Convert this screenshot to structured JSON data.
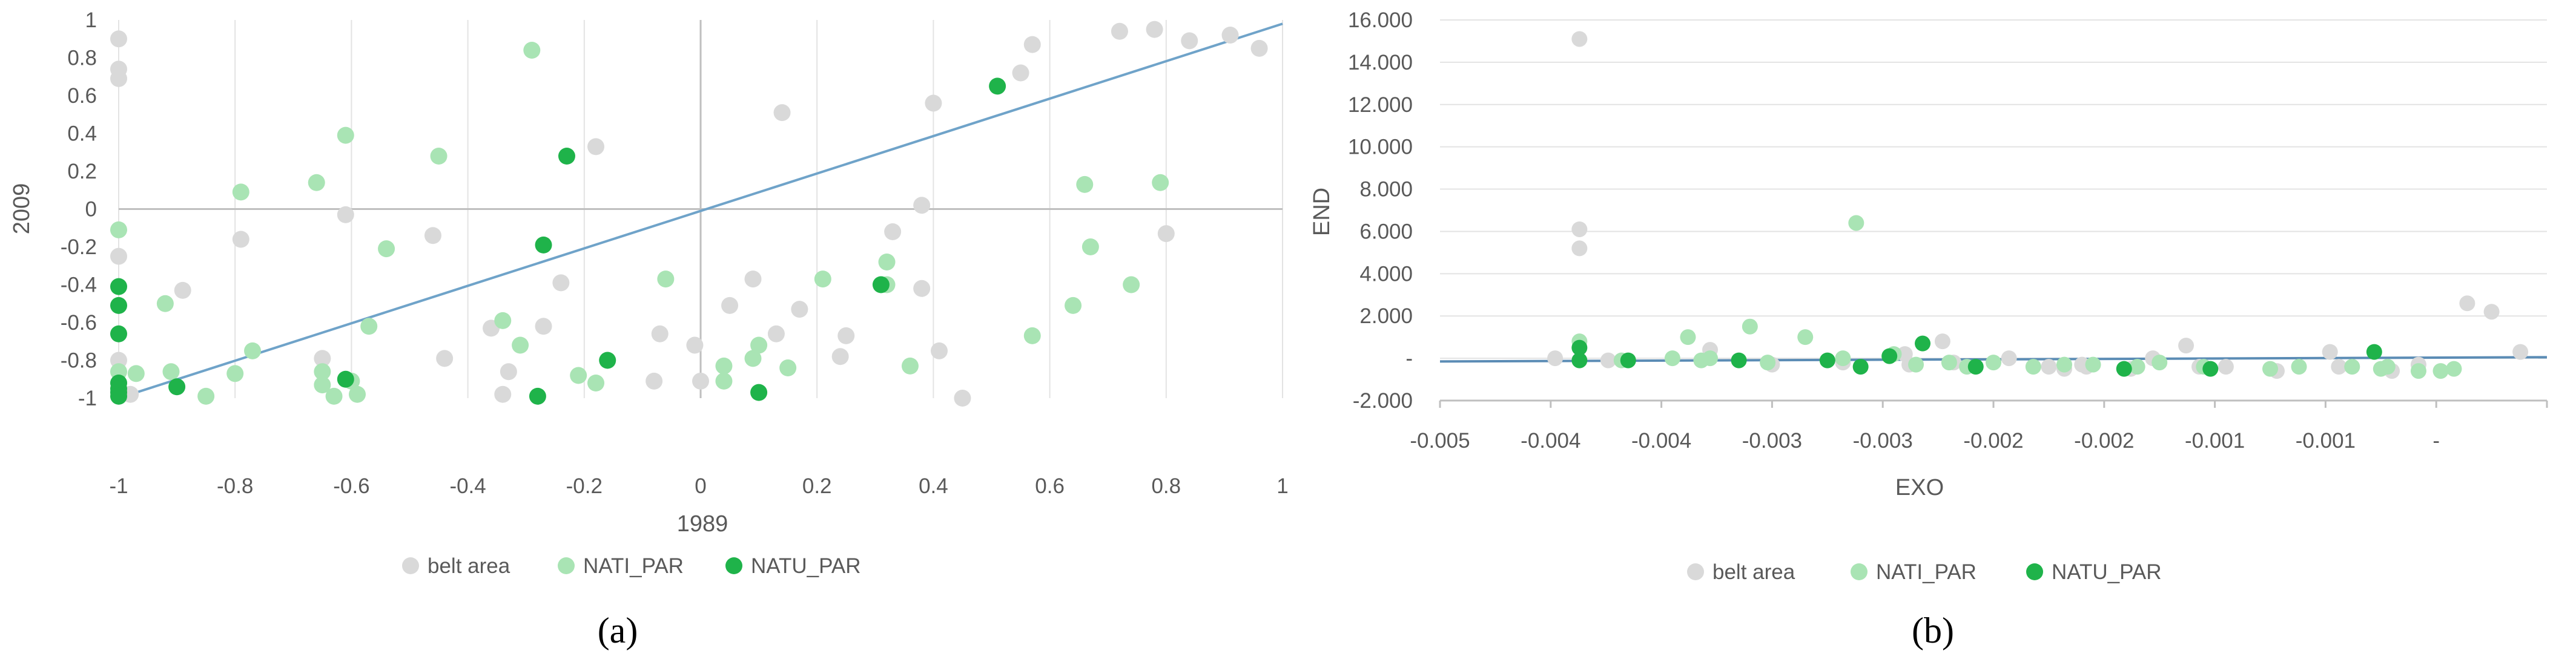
{
  "chart_data": [
    {
      "type": "scatter",
      "panel_label": "(a)",
      "xlabel": "1989",
      "ylabel": "2009",
      "xlim": [
        -1,
        1
      ],
      "ylim": [
        -1,
        1
      ],
      "x_ticks": [
        -1,
        -0.8,
        -0.6,
        -0.4,
        -0.2,
        0,
        0.2,
        0.4,
        0.6,
        0.8,
        1
      ],
      "x_tick_labels": [
        "-1",
        "-0.8",
        "-0.6",
        "-0.4",
        "-0.2",
        "0",
        "0.2",
        "0.4",
        "0.6",
        "0.8",
        "1"
      ],
      "y_ticks": [
        1,
        0.8,
        0.6,
        0.4,
        0.2,
        0,
        -0.2,
        -0.4,
        -0.6,
        -0.8,
        -1
      ],
      "y_tick_labels": [
        "1",
        "0.8",
        "0.6",
        "0.4",
        "0.2",
        "0",
        "-0.2",
        "-0.4",
        "-0.6",
        "-0.8",
        "-1"
      ],
      "trendline": {
        "x": [
          -1,
          1
        ],
        "y": [
          -1,
          0.98
        ],
        "color": "#6fa3c9"
      },
      "legend_position": "bottom",
      "series": [
        {
          "name": "belt area",
          "color": "#d9d9d9",
          "x": [
            -1,
            -1,
            -1,
            -1,
            -0.89,
            -0.79,
            -0.65,
            -0.61,
            -0.46,
            -0.44,
            -0.36,
            -0.34,
            -0.33,
            -0.27,
            -0.24,
            -0.18,
            -0.07,
            -0.08,
            -0.01,
            0,
            0.05,
            0.09,
            0.13,
            0.14,
            0.17,
            0.24,
            0.25,
            0.33,
            0.38,
            0.38,
            0.4,
            0.41,
            0.45,
            0.55,
            0.57,
            0.72,
            0.78,
            0.84,
            0.91,
            0.96,
            0.8,
            -0.98,
            -1
          ],
          "y": [
            0.9,
            0.74,
            0.69,
            -0.25,
            -0.43,
            -0.16,
            -0.79,
            -0.03,
            -0.14,
            -0.79,
            -0.63,
            -0.98,
            -0.86,
            -0.62,
            -0.39,
            0.33,
            -0.66,
            -0.91,
            -0.72,
            -0.91,
            -0.51,
            -0.37,
            -0.66,
            0.51,
            -0.53,
            -0.78,
            -0.67,
            -0.12,
            0.02,
            -0.42,
            0.56,
            -0.75,
            -1,
            0.72,
            0.87,
            0.94,
            0.95,
            0.89,
            0.92,
            0.85,
            -0.13,
            -0.98,
            -0.8
          ]
        },
        {
          "name": "NATI_PAR",
          "color": "#a9e4b4",
          "x": [
            -1,
            -1,
            -0.97,
            -0.92,
            -0.91,
            -0.85,
            -0.8,
            -0.79,
            -0.77,
            -0.66,
            -0.65,
            -0.65,
            -0.63,
            -0.61,
            -0.6,
            -0.59,
            -0.57,
            -0.54,
            -0.45,
            -0.34,
            -0.31,
            -0.29,
            -0.21,
            -0.18,
            -0.06,
            0.04,
            0.04,
            0.09,
            0.1,
            0.15,
            0.21,
            0.32,
            0.32,
            0.36,
            0.57,
            0.64,
            0.66,
            0.67,
            0.74,
            0.79
          ],
          "y": [
            -0.11,
            -0.86,
            -0.87,
            -0.5,
            -0.86,
            -0.99,
            -0.87,
            0.09,
            -0.75,
            0.14,
            -0.86,
            -0.93,
            -0.99,
            0.39,
            -0.91,
            -0.98,
            -0.62,
            -0.21,
            0.28,
            -0.59,
            -0.72,
            0.84,
            -0.88,
            -0.92,
            -0.37,
            -0.83,
            -0.91,
            -0.79,
            -0.72,
            -0.84,
            -0.37,
            -0.28,
            -0.4,
            -0.83,
            -0.67,
            -0.51,
            0.13,
            -0.2,
            -0.4,
            0.14
          ]
        },
        {
          "name": "NATU_PAR",
          "color": "#1fb34a",
          "x": [
            -1,
            -1,
            -1,
            -1,
            -1,
            -1,
            -1,
            -0.9,
            -0.61,
            -0.23,
            -0.27,
            -0.28,
            -0.16,
            0.1,
            0.31,
            0.51
          ],
          "y": [
            -0.41,
            -0.51,
            -0.66,
            -0.92,
            -0.95,
            -0.97,
            -0.99,
            -0.94,
            -0.9,
            0.28,
            -0.19,
            -0.99,
            -0.8,
            -0.97,
            -0.4,
            0.65
          ]
        }
      ]
    },
    {
      "type": "scatter",
      "panel_label": "(b)",
      "xlabel": "EXO",
      "ylabel": "END",
      "xlim": [
        -0.005,
        0
      ],
      "ylim": [
        -2000,
        16000
      ],
      "x_ticks": [
        -0.005,
        -0.0045,
        -0.004,
        -0.0035,
        -0.003,
        -0.0025,
        -0.002,
        -0.0015,
        -0.001,
        -0.0005,
        0
      ],
      "x_tick_labels": [
        "-0.005",
        "-0.004",
        "-0.004",
        "-0.003",
        "-0.003",
        "-0.002",
        "-0.002",
        "-0.001",
        "-0.001",
        "-",
        ""
      ],
      "y_ticks": [
        16000,
        14000,
        12000,
        10000,
        8000,
        6000,
        4000,
        2000,
        0,
        -2000
      ],
      "y_tick_labels": [
        "16.000",
        "14.000",
        "12.000",
        "10.000",
        "8.000",
        "6.000",
        "4.000",
        "2.000",
        "-",
        "-2.000"
      ],
      "trendline": {
        "x": [
          -0.005,
          0
        ],
        "y": [
          -150,
          50
        ],
        "color": "#5b8cb5"
      },
      "legend_position": "bottom",
      "series": [
        {
          "name": "belt area",
          "color": "#d9d9d9",
          "x": [
            -0.00437,
            -0.00437,
            -0.00437,
            -0.00424,
            -0.00378,
            -0.0035,
            -0.0029,
            -0.00288,
            -0.00273,
            -0.00268,
            -0.00243,
            -0.00225,
            -0.00218,
            -0.0021,
            -0.00188,
            -0.00178,
            -0.00163,
            -0.00157,
            -0.00145,
            -0.00122,
            -0.00098,
            -0.00094,
            -0.0007,
            -0.00058,
            -0.00036,
            -0.00025,
            -0.00012,
            -0.00448,
            -0.00318,
            -0.00208
          ],
          "y": [
            15100,
            6100,
            5200,
            -100,
            400,
            -300,
            200,
            -300,
            800,
            -200,
            0,
            -400,
            -500,
            -300,
            -500,
            0,
            600,
            -400,
            -400,
            -600,
            300,
            -400,
            -600,
            -300,
            2600,
            2200,
            300,
            0,
            -200,
            -400
          ]
        },
        {
          "name": "NATI_PAR",
          "color": "#a9e4b4",
          "x": [
            -0.00437,
            -0.00418,
            -0.00395,
            -0.00388,
            -0.00378,
            -0.0036,
            -0.00352,
            -0.00335,
            -0.00318,
            -0.00312,
            -0.00285,
            -0.0027,
            -0.0025,
            -0.00232,
            -0.00218,
            -0.00205,
            -0.00185,
            -0.00175,
            -0.00155,
            -0.00125,
            -0.00112,
            -0.00088,
            -0.00075,
            -0.00072,
            -0.00058,
            -0.00048,
            -0.00042,
            -0.00382,
            -0.00295,
            -0.00262
          ],
          "y": [
            800,
            -100,
            0,
            1000,
            0,
            1500,
            -200,
            1000,
            0,
            6400,
            -300,
            -200,
            -200,
            -400,
            -300,
            -300,
            -400,
            -200,
            -400,
            -500,
            -400,
            -400,
            -500,
            -400,
            -600,
            -600,
            -500,
            -100,
            200,
            -400
          ]
        },
        {
          "name": "NATU_PAR",
          "color": "#1fb34a",
          "x": [
            -0.00437,
            -0.00437,
            -0.00415,
            -0.00365,
            -0.00325,
            -0.0031,
            -0.00297,
            -0.00282,
            -0.00258,
            -0.00191,
            -0.00152,
            -0.00078
          ],
          "y": [
            500,
            -100,
            -100,
            -100,
            -100,
            -400,
            100,
            700,
            -400,
            -500,
            -500,
            300
          ]
        }
      ]
    }
  ]
}
